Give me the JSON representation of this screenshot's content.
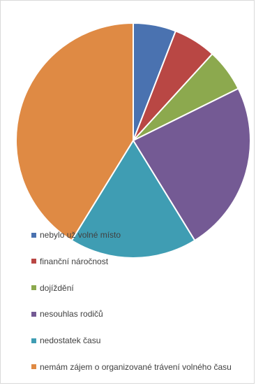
{
  "chart_data": {
    "type": "pie",
    "title": "",
    "categories": [
      "nebylo už volné místo",
      "finanční náročnost",
      "dojíždění",
      "nesouhlas rodičů",
      "nedostatek času",
      "nemám zájem o organizované trávení volného času"
    ],
    "values": [
      5.9,
      5.9,
      5.9,
      23.5,
      17.6,
      41.2
    ],
    "colors": [
      "#4a72b0",
      "#b94744",
      "#8ca94e",
      "#745a94",
      "#3f9db3",
      "#df8a44"
    ],
    "legend_position": "overlay-bottom-left",
    "start_angle": "12 o'clock",
    "direction": "clockwise"
  }
}
